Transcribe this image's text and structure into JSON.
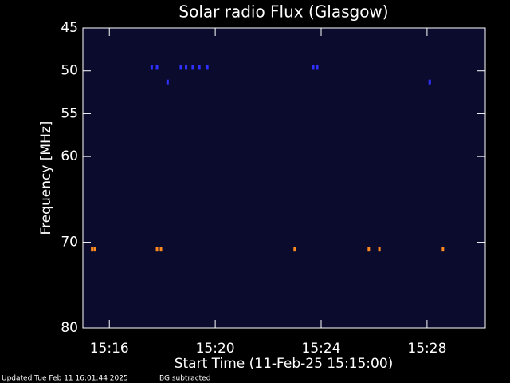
{
  "chart_data": {
    "type": "spectrogram",
    "title": "Solar radio Flux (Glasgow)",
    "y_label": "Frequency [MHz]",
    "x_label": "Start Time (11-Feb-25 15:15:00)",
    "footer_left": "Updated Tue Feb 11 16:01:44 2025",
    "footer_right": "BG subtracted",
    "background": "#0b0b2e",
    "xlim": [
      0,
      15.2
    ],
    "xticks": [
      {
        "value": 1,
        "label": "15:16"
      },
      {
        "value": 5,
        "label": "15:20"
      },
      {
        "value": 9,
        "label": "15:24"
      },
      {
        "value": 13,
        "label": "15:28"
      }
    ],
    "ylim": [
      45,
      80
    ],
    "yticks": [
      45,
      50,
      55,
      60,
      70,
      80
    ],
    "series": [
      {
        "color": "#3030ff",
        "x": [
          2.6,
          2.8,
          3.7,
          3.9,
          4.15,
          4.4,
          4.7,
          8.7,
          8.85,
          3.2,
          13.1
        ],
        "y": [
          49.6,
          49.6,
          49.6,
          49.6,
          49.6,
          49.6,
          49.6,
          49.6,
          49.6,
          51.3,
          51.3
        ]
      },
      {
        "color": "#ff8a20",
        "x": [
          0.35,
          0.45,
          2.8,
          2.95,
          8.0,
          10.8,
          11.2,
          13.6
        ],
        "y": [
          70.8,
          70.8,
          70.8,
          70.8,
          70.8,
          70.8,
          70.8,
          70.8
        ]
      }
    ]
  }
}
